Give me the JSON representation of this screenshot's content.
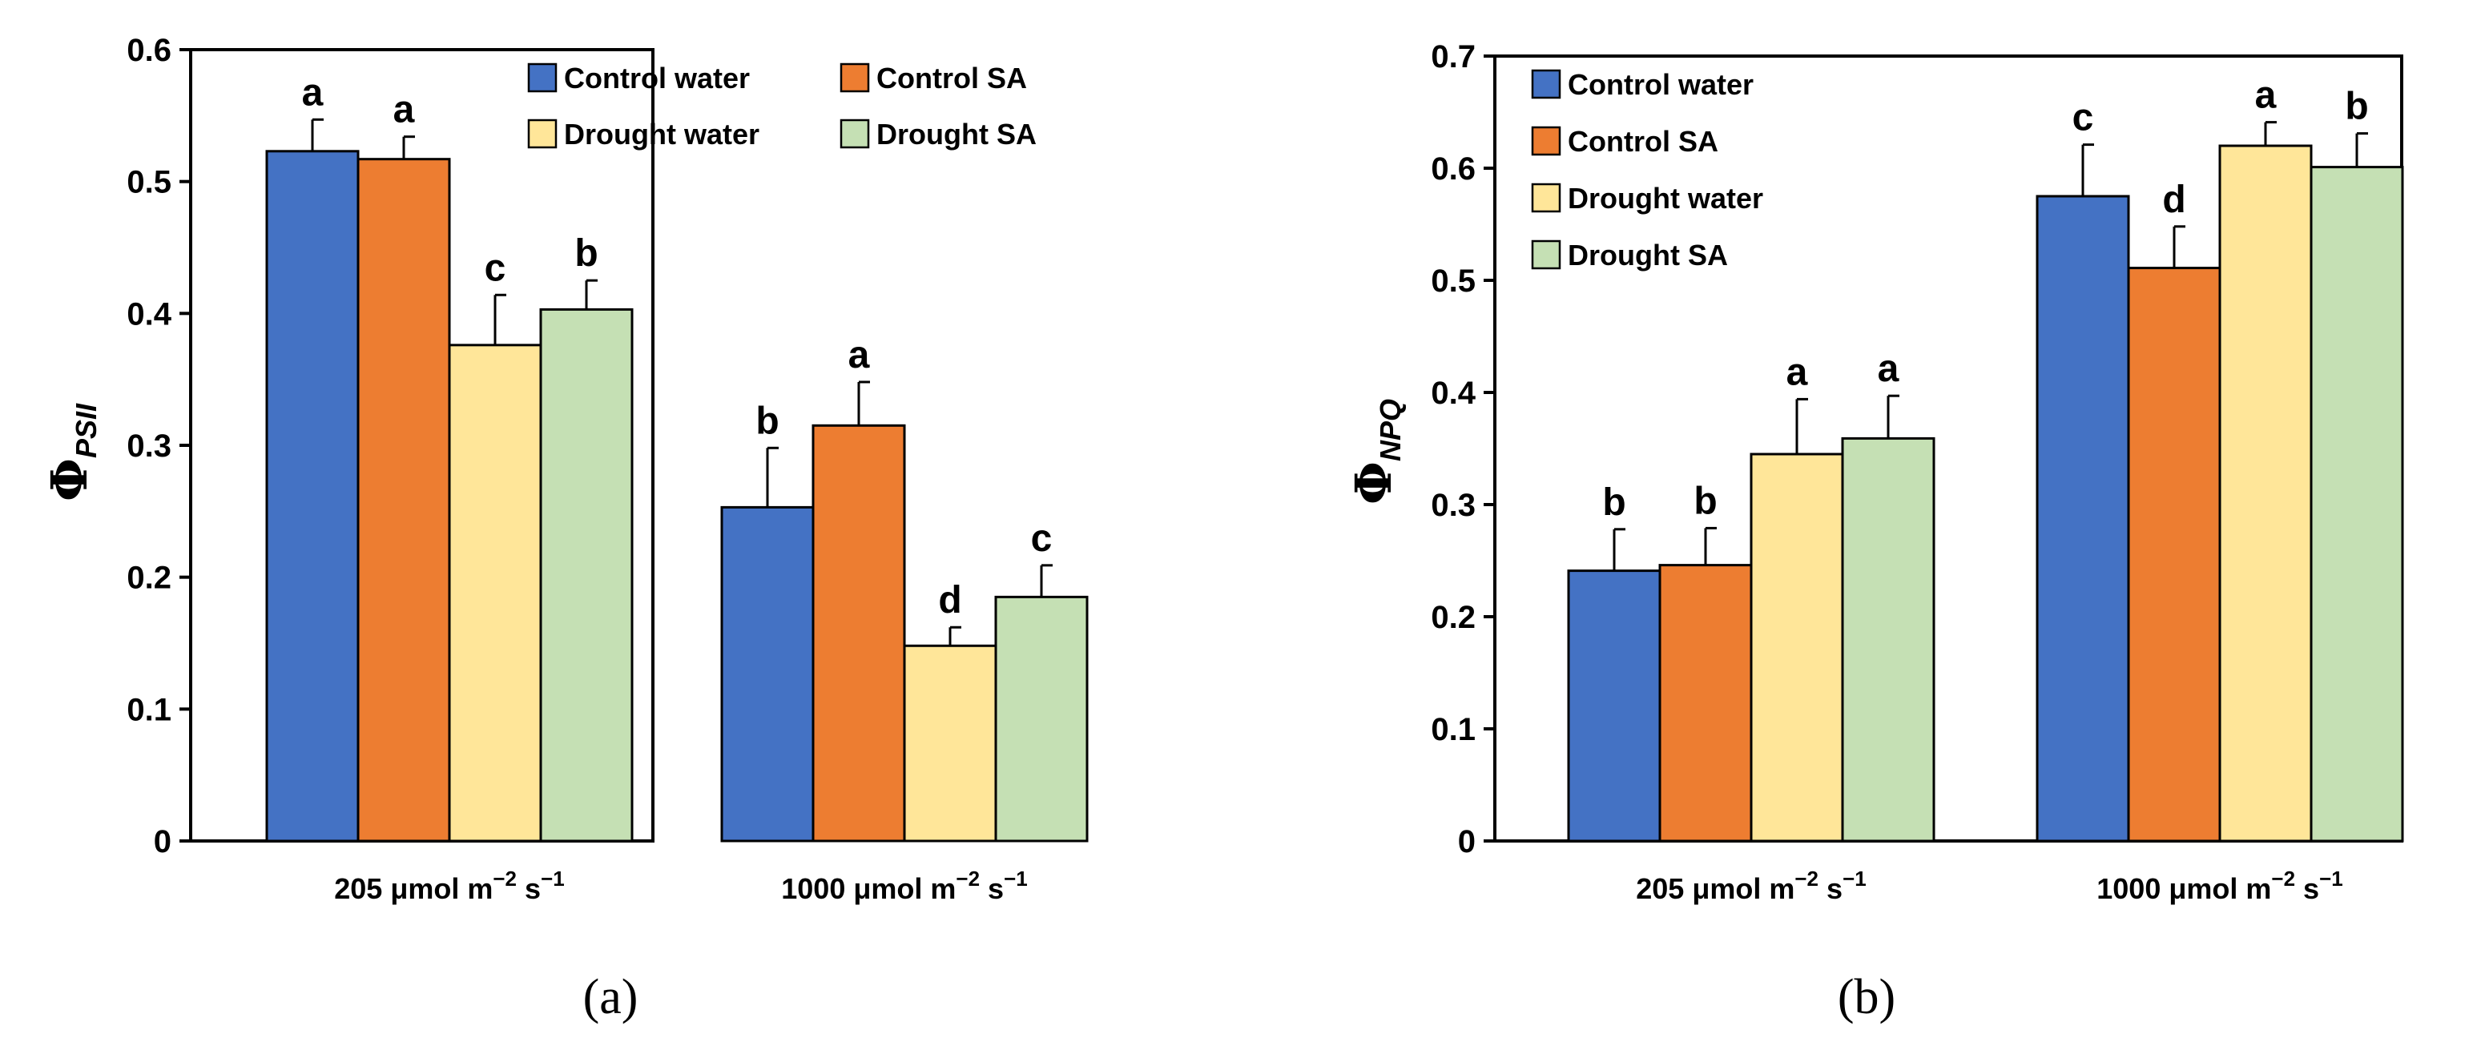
{
  "chart_data": [
    {
      "type": "bar",
      "panel": "(a)",
      "ylabel": "Φ",
      "ylabel_sub": "PSII",
      "ylim": [
        0,
        0.6
      ],
      "yticks": [
        0,
        0.1,
        0.2,
        0.3,
        0.4,
        0.5,
        0.6
      ],
      "ytick_labels": [
        "0",
        "0.1",
        "0.2",
        "0.3",
        "0.4",
        "0.5",
        "0.6"
      ],
      "categories": [
        {
          "main": "205 μmol m",
          "exp1": "−2",
          "mid": " s",
          "exp2": "−1"
        },
        {
          "main": "1000 μmol m",
          "exp1": "−2",
          "mid": " s",
          "exp2": "−1"
        }
      ],
      "legend_position": "top-right",
      "legend_order": [
        0,
        2,
        1,
        3
      ],
      "series": [
        {
          "name": "Control water",
          "color": "#4472C4",
          "values": [
            0.523,
            0.253
          ],
          "errors": [
            0.024,
            0.045
          ],
          "letters": [
            "a",
            "b"
          ]
        },
        {
          "name": "Control SA",
          "color": "#ED7D31",
          "values": [
            0.517,
            0.315
          ],
          "errors": [
            0.017,
            0.033
          ],
          "letters": [
            "a",
            "a"
          ]
        },
        {
          "name": "Drought water",
          "color": "#FFE699",
          "values": [
            0.376,
            0.148
          ],
          "errors": [
            0.038,
            0.014
          ],
          "letters": [
            "c",
            "d"
          ]
        },
        {
          "name": "Drought SA",
          "color": "#C5E0B4",
          "values": [
            0.403,
            0.185
          ],
          "errors": [
            0.022,
            0.024
          ],
          "letters": [
            "b",
            "c"
          ]
        }
      ]
    },
    {
      "type": "bar",
      "panel": "(b)",
      "ylabel": "Φ",
      "ylabel_sub": "NPQ",
      "ylim": [
        0,
        0.7
      ],
      "yticks": [
        0,
        0.1,
        0.2,
        0.3,
        0.4,
        0.5,
        0.6,
        0.7
      ],
      "ytick_labels": [
        "0",
        "0.1",
        "0.2",
        "0.3",
        "0.4",
        "0.5",
        "0.6",
        "0.7"
      ],
      "categories": [
        {
          "main": "205 μmol m",
          "exp1": "−2",
          "mid": " s",
          "exp2": "−1"
        },
        {
          "main": "1000 μmol m",
          "exp1": "−2",
          "mid": " s",
          "exp2": "−1"
        }
      ],
      "legend_position": "top-left",
      "legend_order": [
        0,
        1,
        2,
        3
      ],
      "series": [
        {
          "name": "Control water",
          "color": "#4472C4",
          "values": [
            0.241,
            0.575
          ],
          "errors": [
            0.037,
            0.046
          ],
          "letters": [
            "b",
            "c"
          ]
        },
        {
          "name": "Control SA",
          "color": "#ED7D31",
          "values": [
            0.246,
            0.511
          ],
          "errors": [
            0.033,
            0.037
          ],
          "letters": [
            "b",
            "d"
          ]
        },
        {
          "name": "Drought water",
          "color": "#FFE699",
          "values": [
            0.345,
            0.62
          ],
          "errors": [
            0.049,
            0.021
          ],
          "letters": [
            "a",
            "a"
          ]
        },
        {
          "name": "Drought SA",
          "color": "#C5E0B4",
          "values": [
            0.359,
            0.601
          ],
          "errors": [
            0.038,
            0.03
          ],
          "letters": [
            "a",
            "b"
          ]
        }
      ]
    }
  ]
}
